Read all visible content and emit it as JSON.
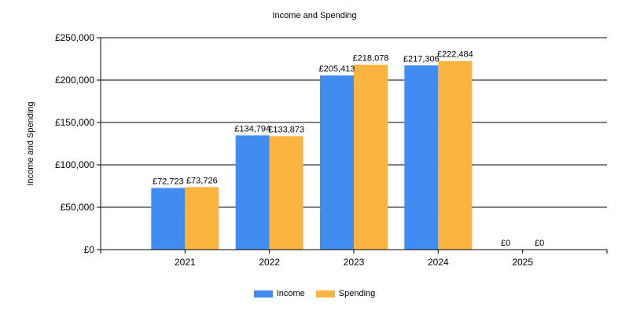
{
  "chart_data": {
    "type": "bar",
    "title": "Income and Spending",
    "ylabel": "Income and Spending",
    "xlabel": "",
    "categories": [
      "2021",
      "2022",
      "2023",
      "2024",
      "2025"
    ],
    "series": [
      {
        "name": "Income",
        "color": "#418CF0",
        "values": [
          72723,
          134794,
          205413,
          217306,
          0
        ]
      },
      {
        "name": "Spending",
        "color": "#FCB441",
        "values": [
          73726,
          133873,
          218078,
          222484,
          0
        ]
      }
    ],
    "data_labels": [
      [
        "£72,723",
        "£134,794",
        "£205,413",
        "£217,306",
        "£0"
      ],
      [
        "£73,726",
        "£133,873",
        "£218,078",
        "£222,484",
        "£0"
      ]
    ],
    "ylim": [
      0,
      250000
    ],
    "yticks": [
      0,
      50000,
      100000,
      150000,
      200000,
      250000
    ],
    "ytick_labels": [
      "£0",
      "£50,000",
      "£100,000",
      "£150,000",
      "£200,000",
      "£250,000"
    ],
    "grid": true,
    "legend_position": "bottom-center"
  }
}
